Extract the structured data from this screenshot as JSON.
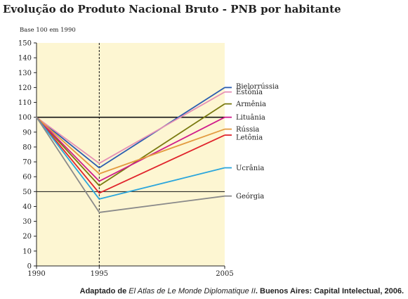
{
  "chart_data": {
    "type": "line",
    "title": "Evolução do Produto Nacional Bruto - PNB por habitante",
    "subtitle": "Base 100 em 1990",
    "x": [
      "1990",
      "1995",
      "2005"
    ],
    "ylim": [
      0,
      150
    ],
    "yticks": [
      0,
      10,
      20,
      30,
      40,
      50,
      60,
      70,
      80,
      90,
      100,
      110,
      120,
      130,
      140,
      150
    ],
    "reference_lines": [
      100,
      50
    ],
    "marker_line_x": "1995",
    "background_color": "#fdf6d2",
    "series": [
      {
        "name": "Bielorrússia",
        "values": [
          100,
          66,
          120
        ],
        "color": "#2a5db0"
      },
      {
        "name": "Estônia",
        "values": [
          100,
          69,
          117
        ],
        "color": "#e58fb5"
      },
      {
        "name": "Armênia",
        "values": [
          100,
          54,
          109
        ],
        "color": "#7a7a10"
      },
      {
        "name": "Lituânia",
        "values": [
          100,
          57,
          100
        ],
        "color": "#d01c8b"
      },
      {
        "name": "Rússia",
        "values": [
          100,
          62,
          92
        ],
        "color": "#e39b40"
      },
      {
        "name": "Letônia",
        "values": [
          100,
          49,
          88
        ],
        "color": "#e0242c"
      },
      {
        "name": "Ucrânia",
        "values": [
          100,
          45,
          66
        ],
        "color": "#2ba6dc"
      },
      {
        "name": "Geórgia",
        "values": [
          100,
          36,
          47
        ],
        "color": "#8a8a8a"
      }
    ]
  },
  "source": {
    "prefix": "Adaptado de ",
    "book": "El Atlas de Le Monde Diplomatique II",
    "suffix": ". Buenos Aires: Capital Intelectual, 2006."
  }
}
